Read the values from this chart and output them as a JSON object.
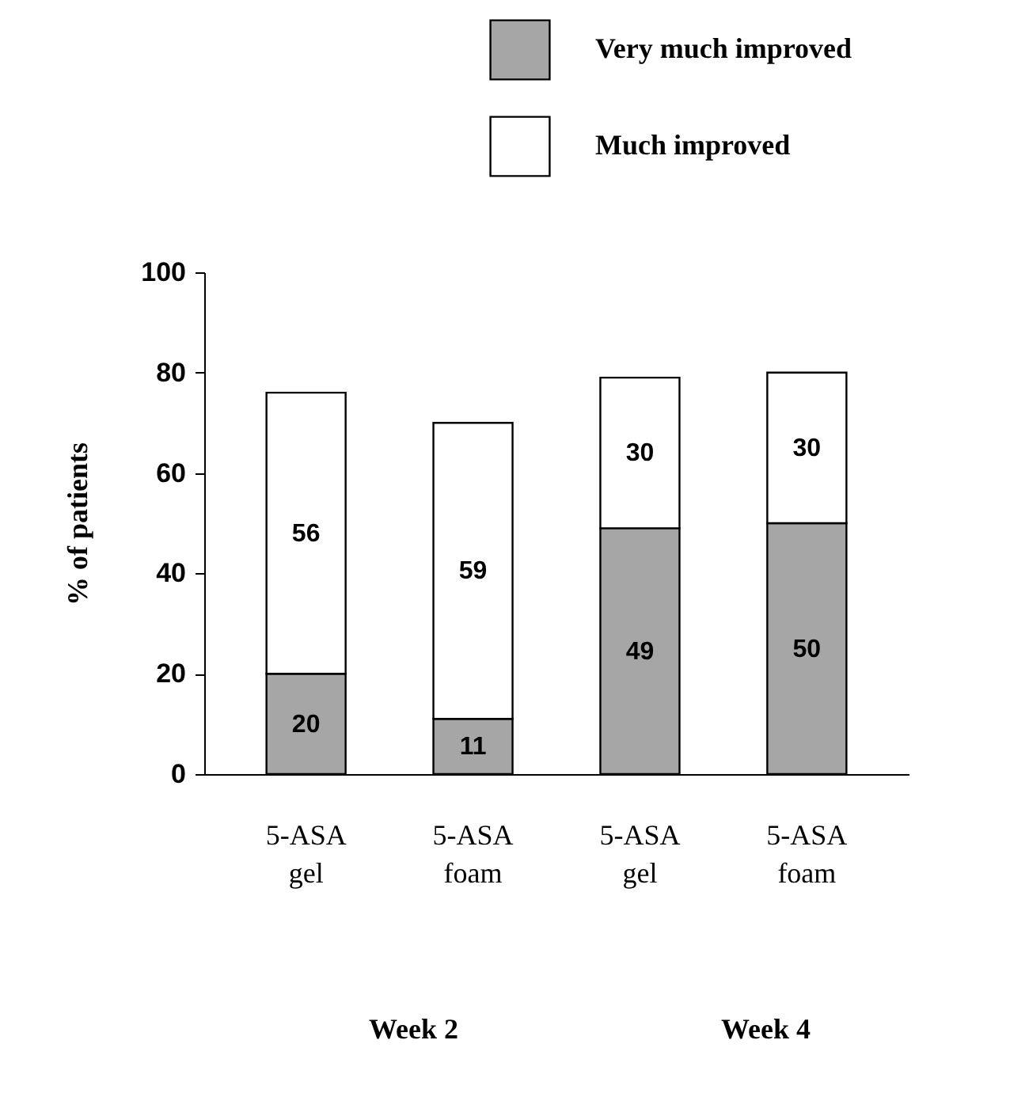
{
  "chart_data": {
    "type": "bar",
    "stacked": true,
    "ylabel": "% of patients",
    "categories": [
      "5-ASA gel",
      "5-ASA foam",
      "5-ASA gel",
      "5-ASA foam"
    ],
    "series": [
      {
        "name": "Very much improved",
        "color": "#a6a6a6",
        "values": [
          20,
          11,
          49,
          50
        ]
      },
      {
        "name": "Much improved",
        "color": "#ffffff",
        "values": [
          56,
          59,
          30,
          30
        ]
      }
    ],
    "ylim": [
      0,
      100
    ],
    "yticks": [
      0,
      20,
      40,
      60,
      80,
      100
    ],
    "grid": false,
    "legend": "top right",
    "data_labels": true,
    "annotations": [
      "Week 2",
      "Week 4"
    ]
  }
}
